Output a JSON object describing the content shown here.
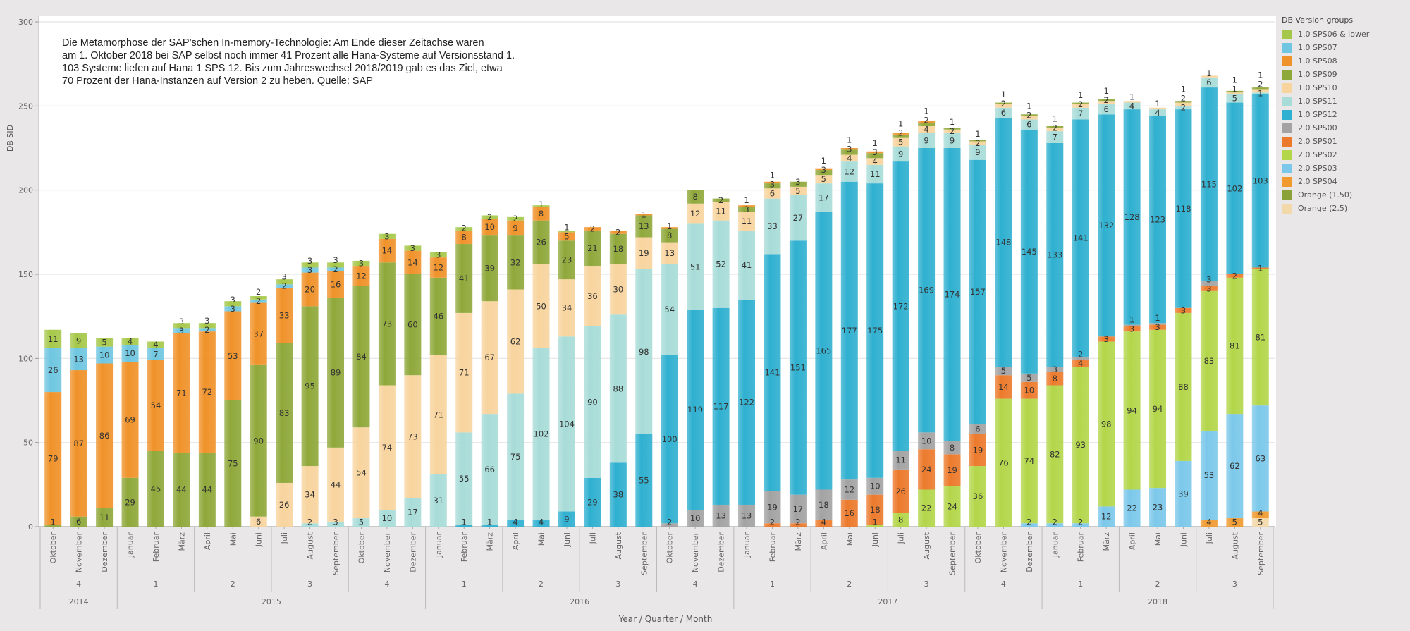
{
  "annotation": {
    "lines": [
      "Die Metamorphose der SAP’schen In-memory-Technologie: Am Ende dieser Zeitachse waren",
      "am 1. Oktober 2018 bei SAP selbst noch immer 41 Prozent alle Hana-Systeme auf Versionsstand 1.",
      "103 Systeme liefen auf Hana 1 SPS 12. Bis zum Jahreswechsel 2018/2019 gab es das Ziel, etwa",
      "70 Prozent der Hana-Instanzen auf Version 2 zu heben. Quelle: SAP"
    ]
  },
  "chart_data": {
    "type": "bar",
    "stacked": true,
    "ylabel": "DB SID",
    "xlabel": "Year / Quarter / Month",
    "ylim": [
      0,
      300
    ],
    "yticks": [
      0,
      50,
      100,
      150,
      200,
      250,
      300
    ],
    "grid": true,
    "legend_title": "DB Version groups",
    "legend_position": "right",
    "categories": [
      "Oktober",
      "November",
      "Dezember",
      "Januar",
      "Februar",
      "März",
      "April",
      "Mai",
      "Juni",
      "Juli",
      "August",
      "September",
      "Oktober",
      "November",
      "Dezember",
      "Januar",
      "Februar",
      "März",
      "April",
      "Mai",
      "Juni",
      "Juli",
      "August",
      "September",
      "Oktober",
      "November",
      "Dezember",
      "Januar",
      "Februar",
      "März",
      "April",
      "Mai",
      "Juni",
      "Juli",
      "August",
      "September",
      "Oktober",
      "November",
      "Dezember",
      "Januar",
      "Februar",
      "März",
      "April",
      "Mai",
      "Juni",
      "Juli",
      "August",
      "September"
    ],
    "quarters": [
      {
        "label": "4",
        "count": 3
      },
      {
        "label": "1",
        "count": 3
      },
      {
        "label": "2",
        "count": 3
      },
      {
        "label": "3",
        "count": 3
      },
      {
        "label": "4",
        "count": 3
      },
      {
        "label": "1",
        "count": 3
      },
      {
        "label": "2",
        "count": 3
      },
      {
        "label": "3",
        "count": 3
      },
      {
        "label": "4",
        "count": 3
      },
      {
        "label": "1",
        "count": 3
      },
      {
        "label": "2",
        "count": 3
      },
      {
        "label": "3",
        "count": 3
      },
      {
        "label": "4",
        "count": 3
      },
      {
        "label": "1",
        "count": 3
      },
      {
        "label": "2",
        "count": 3
      },
      {
        "label": "3",
        "count": 3
      }
    ],
    "years": [
      {
        "label": "2014",
        "count": 3
      },
      {
        "label": "2015",
        "count": 12
      },
      {
        "label": "2016",
        "count": 12
      },
      {
        "label": "2017",
        "count": 12
      },
      {
        "label": "2018",
        "count": 9
      }
    ],
    "legend_order": [
      "1.0 SPS06 & lower",
      "1.0 SPS07",
      "1.0 SPS08",
      "1.0 SPS09",
      "1.0 SPS10",
      "1.0 SPS11",
      "1.0 SPS12",
      "2.0 SPS00",
      "2.0 SPS01",
      "2.0 SPS02",
      "2.0 SPS03",
      "2.0 SPS04",
      "Orange (1.50)",
      "Orange (2.5)"
    ],
    "series": [
      {
        "name": "Orange (2.5)",
        "color": "#f3d9aa",
        "values": [
          0,
          0,
          0,
          0,
          0,
          0,
          0,
          0,
          0,
          0,
          0,
          0,
          0,
          0,
          0,
          0,
          0,
          0,
          0,
          0,
          0,
          0,
          0,
          0,
          0,
          0,
          0,
          0,
          0,
          0,
          0,
          0,
          0,
          0,
          0,
          0,
          0,
          0,
          0,
          0,
          0,
          0,
          0,
          0,
          0,
          0,
          0,
          5
        ]
      },
      {
        "name": "Orange (1.50)",
        "color": "#8aa238",
        "values": [
          0,
          0,
          0,
          0,
          0,
          0,
          0,
          0,
          0,
          0,
          0,
          0,
          0,
          0,
          0,
          0,
          0,
          0,
          0,
          0,
          0,
          0,
          0,
          0,
          0,
          0,
          0,
          0,
          0,
          0,
          0,
          0,
          0,
          0,
          0,
          0,
          0,
          0,
          0,
          0,
          0,
          0,
          0,
          0,
          0,
          0,
          0,
          0
        ]
      },
      {
        "name": "2.0 SPS04",
        "color": "#f09a30",
        "values": [
          0,
          0,
          0,
          0,
          0,
          0,
          0,
          0,
          0,
          0,
          0,
          0,
          0,
          0,
          0,
          0,
          0,
          0,
          0,
          0,
          0,
          0,
          0,
          0,
          0,
          0,
          0,
          0,
          0,
          0,
          0,
          0,
          0,
          0,
          0,
          0,
          0,
          0,
          0,
          0,
          0,
          0,
          0,
          0,
          0,
          4,
          5,
          4
        ]
      },
      {
        "name": "2.0 SPS03",
        "color": "#7cc8ea",
        "values": [
          0,
          0,
          0,
          0,
          0,
          0,
          0,
          0,
          0,
          0,
          0,
          0,
          0,
          0,
          0,
          0,
          0,
          0,
          0,
          0,
          0,
          0,
          0,
          0,
          0,
          0,
          0,
          0,
          0,
          0,
          0,
          0,
          0,
          0,
          0,
          0,
          0,
          0,
          2,
          2,
          2,
          12,
          22,
          23,
          39,
          53,
          62,
          63
        ]
      },
      {
        "name": "2.0 SPS02",
        "color": "#b3d64a",
        "values": [
          0,
          0,
          0,
          0,
          0,
          0,
          0,
          0,
          0,
          0,
          0,
          0,
          0,
          0,
          0,
          0,
          0,
          0,
          0,
          0,
          0,
          0,
          0,
          0,
          0,
          0,
          0,
          0,
          0,
          0,
          0,
          0,
          1,
          8,
          22,
          24,
          36,
          76,
          74,
          82,
          93,
          98,
          94,
          94,
          88,
          83,
          81,
          81
        ]
      },
      {
        "name": "2.0 SPS01",
        "color": "#ec7a2c",
        "values": [
          0,
          0,
          0,
          0,
          0,
          0,
          0,
          0,
          0,
          0,
          0,
          0,
          0,
          0,
          0,
          0,
          0,
          0,
          0,
          0,
          0,
          0,
          0,
          0,
          0,
          0,
          0,
          0,
          2,
          2,
          4,
          16,
          18,
          26,
          24,
          19,
          19,
          14,
          10,
          8,
          4,
          3,
          3,
          3,
          3,
          3,
          2,
          1
        ]
      },
      {
        "name": "2.0 SPS00",
        "color": "#a3a3a3",
        "values": [
          0,
          0,
          0,
          0,
          0,
          0,
          0,
          0,
          0,
          0,
          0,
          0,
          0,
          0,
          0,
          0,
          0,
          0,
          0,
          0,
          0,
          0,
          0,
          0,
          2,
          10,
          13,
          13,
          19,
          17,
          18,
          12,
          10,
          11,
          10,
          8,
          6,
          5,
          5,
          3,
          2,
          0,
          1,
          1,
          0,
          3,
          0,
          0
        ]
      },
      {
        "name": "1.0 SPS12",
        "color": "#2fb0d0",
        "values": [
          0,
          0,
          0,
          0,
          0,
          0,
          0,
          0,
          0,
          0,
          0,
          0,
          0,
          0,
          0,
          0,
          1,
          1,
          4,
          4,
          9,
          29,
          38,
          55,
          100,
          119,
          117,
          122,
          141,
          151,
          165,
          177,
          175,
          172,
          169,
          174,
          157,
          148,
          145,
          133,
          141,
          132,
          128,
          123,
          118,
          115,
          102,
          103
        ]
      },
      {
        "name": "1.0 SPS11",
        "color": "#a8dcd8",
        "values": [
          0,
          0,
          0,
          0,
          0,
          0,
          0,
          0,
          0,
          0,
          2,
          3,
          5,
          10,
          17,
          31,
          55,
          66,
          75,
          102,
          104,
          90,
          88,
          98,
          54,
          51,
          52,
          41,
          33,
          27,
          17,
          12,
          11,
          9,
          9,
          9,
          9,
          6,
          6,
          7,
          7,
          6,
          4,
          4,
          2,
          6,
          5,
          1
        ]
      },
      {
        "name": "1.0 SPS10",
        "color": "#f8d49e",
        "values": [
          0,
          0,
          0,
          0,
          0,
          0,
          0,
          0,
          6,
          26,
          34,
          44,
          54,
          74,
          73,
          71,
          71,
          67,
          62,
          50,
          34,
          36,
          30,
          19,
          13,
          12,
          11,
          11,
          6,
          5,
          5,
          4,
          4,
          5,
          4,
          2,
          2,
          2,
          2,
          2,
          2,
          2,
          1,
          1,
          2,
          1,
          1,
          2
        ]
      },
      {
        "name": "1.0 SPS09",
        "color": "#8fa83a",
        "values": [
          1,
          6,
          11,
          29,
          45,
          44,
          44,
          75,
          90,
          83,
          95,
          89,
          84,
          73,
          60,
          46,
          41,
          39,
          32,
          26,
          23,
          21,
          18,
          13,
          8,
          8,
          2,
          3,
          3,
          3,
          3,
          3,
          3,
          2,
          2,
          1,
          1,
          1,
          1,
          1,
          1,
          1,
          0,
          0,
          1,
          0,
          1,
          1
        ]
      },
      {
        "name": "1.0 SPS08",
        "color": "#f0922a",
        "values": [
          79,
          87,
          86,
          69,
          54,
          71,
          72,
          53,
          37,
          33,
          20,
          16,
          12,
          14,
          14,
          12,
          8,
          10,
          9,
          8,
          5,
          2,
          2,
          1,
          1,
          0,
          0,
          1,
          1,
          0,
          1,
          1,
          1,
          1,
          1,
          0,
          0,
          0,
          0,
          0,
          0,
          0,
          0,
          0,
          0,
          0,
          0,
          0
        ]
      },
      {
        "name": "1.0 SPS07",
        "color": "#6fc6e0",
        "values": [
          26,
          13,
          10,
          10,
          7,
          3,
          2,
          3,
          2,
          2,
          3,
          2,
          0,
          0,
          0,
          0,
          0,
          0,
          0,
          0,
          0,
          0,
          0,
          0,
          0,
          0,
          0,
          0,
          0,
          0,
          0,
          0,
          0,
          0,
          0,
          0,
          0,
          0,
          0,
          0,
          0,
          0,
          0,
          0,
          0,
          0,
          0,
          0
        ]
      },
      {
        "name": "1.0 SPS06 & lower",
        "color": "#a6c84a",
        "values": [
          11,
          9,
          5,
          4,
          4,
          3,
          3,
          3,
          2,
          3,
          3,
          3,
          3,
          3,
          3,
          3,
          2,
          2,
          2,
          1,
          1,
          0,
          0,
          0,
          0,
          0,
          0,
          0,
          0,
          0,
          0,
          0,
          0,
          0,
          0,
          0,
          0,
          0,
          0,
          0,
          0,
          0,
          0,
          0,
          0,
          0,
          0,
          0
        ]
      }
    ]
  }
}
